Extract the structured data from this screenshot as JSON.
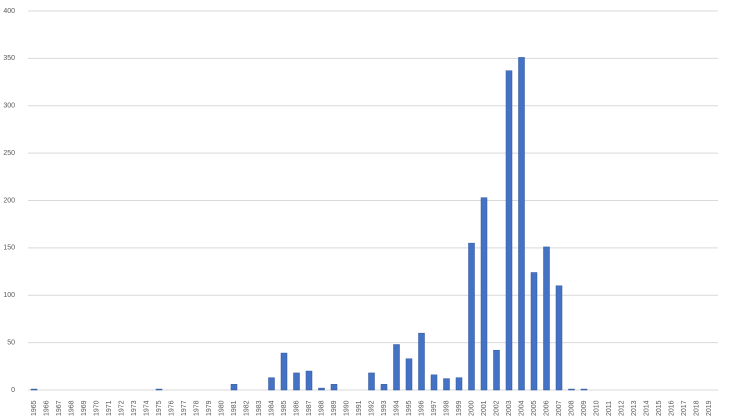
{
  "chart_data": {
    "type": "bar",
    "categories": [
      "1965",
      "1966",
      "1967",
      "1968",
      "1969",
      "1970",
      "1971",
      "1972",
      "1973",
      "1974",
      "1975",
      "1976",
      "1977",
      "1978",
      "1979",
      "1980",
      "1981",
      "1982",
      "1983",
      "1984",
      "1985",
      "1986",
      "1987",
      "1988",
      "1989",
      "1990",
      "1991",
      "1992",
      "1993",
      "1994",
      "1995",
      "1996",
      "1997",
      "1998",
      "1999",
      "2000",
      "2001",
      "2002",
      "2003",
      "2004",
      "2005",
      "2006",
      "2007",
      "2008",
      "2009",
      "2010",
      "2011",
      "2012",
      "2013",
      "2014",
      "2015",
      "2016",
      "2017",
      "2018",
      "2019"
    ],
    "values": [
      1,
      0,
      0,
      0,
      0,
      0,
      0,
      0,
      0,
      0,
      1,
      0,
      0,
      0,
      0,
      0,
      6,
      0,
      0,
      13,
      39,
      18,
      20,
      2,
      6,
      0,
      0,
      18,
      6,
      48,
      33,
      60,
      16,
      12,
      13,
      155,
      203,
      42,
      337,
      351,
      124,
      151,
      110,
      1,
      1,
      0,
      0,
      0,
      0,
      0,
      0,
      0,
      0,
      0,
      0
    ],
    "color": "#4472c4",
    "ylim": [
      0,
      400
    ],
    "yticks": [
      0,
      50,
      100,
      150,
      200,
      250,
      300,
      350,
      400
    ],
    "grid": true
  }
}
